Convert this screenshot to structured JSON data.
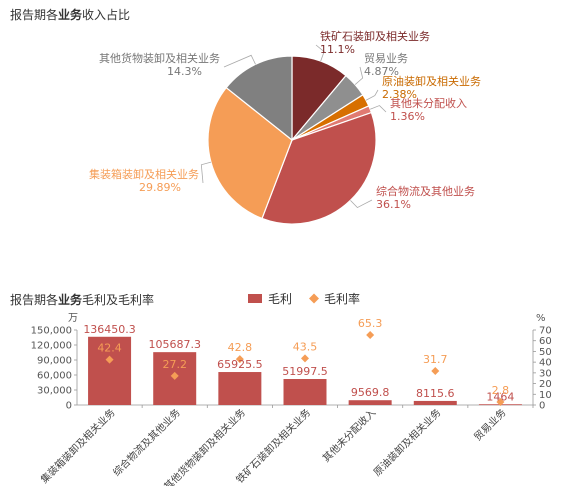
{
  "pie_title": {
    "pre": "报告期各",
    "bold": "业务",
    "post": "收入占比"
  },
  "bar_title": {
    "pre": "报告期各",
    "bold": "业务",
    "post": "毛利及毛利率"
  },
  "colors": {
    "bar": "#c0504d",
    "diamond": "#f59d56"
  },
  "chart_data": [
    {
      "type": "pie",
      "slices": [
        {
          "label": "铁矿石装卸及相关业务",
          "value": 11.1,
          "pct": "11.1%",
          "color": "#7b2a2a",
          "label_color": "#7b2a2a"
        },
        {
          "label": "贸易业务",
          "value": 4.87,
          "pct": "4.87%",
          "color": "#8f8f8f",
          "label_color": "#777777"
        },
        {
          "label": "原油装卸及相关业务",
          "value": 2.38,
          "pct": "2.38%",
          "color": "#d76f00",
          "label_color": "#c96a00"
        },
        {
          "label": "其他未分配收入",
          "value": 1.36,
          "pct": "1.36%",
          "color": "#e07a72",
          "label_color": "#c0504d"
        },
        {
          "label": "综合物流及其他业务",
          "value": 36.1,
          "pct": "36.1%",
          "color": "#c0504d",
          "label_color": "#c0504d"
        },
        {
          "label": "集装箱装卸及相关业务",
          "value": 29.89,
          "pct": "29.89%",
          "color": "#f59d56",
          "label_color": "#f59d56"
        },
        {
          "label": "其他货物装卸及相关业务",
          "value": 14.3,
          "pct": "14.3%",
          "color": "#808080",
          "label_color": "#777777"
        }
      ]
    },
    {
      "type": "bar",
      "legend": [
        "毛利",
        "毛利率"
      ],
      "y_unit_left": "万",
      "y_unit_right": "%",
      "ylim_left": [
        0,
        150000
      ],
      "yticks_left": [
        "0",
        "30,000",
        "60,000",
        "90,000",
        "120,000",
        "150,000"
      ],
      "ylim_right": [
        0,
        70
      ],
      "yticks_right": [
        "0",
        "10",
        "20",
        "30",
        "40",
        "50",
        "60",
        "70"
      ],
      "categories": [
        "集装箱装卸及相关业务",
        "综合物流及其他业务",
        "其他货物装卸及相关业务",
        "铁矿石装卸及相关业务",
        "其他未分配收入",
        "原油装卸及相关业务",
        "贸易业务"
      ],
      "series": [
        {
          "name": "毛利",
          "values": [
            136450.3,
            105687.3,
            65925.5,
            51997.5,
            9569.8,
            8115.6,
            1464
          ],
          "labels": [
            "136450.3",
            "105687.3",
            "65925.5",
            "51997.5",
            "9569.8",
            "8115.6",
            "1464"
          ]
        },
        {
          "name": "毛利率",
          "values": [
            42.4,
            27.2,
            42.8,
            43.5,
            65.3,
            31.7,
            2.8
          ],
          "labels": [
            "42.4",
            "27.2",
            "42.8",
            "43.5",
            "65.3",
            "31.7",
            "2.8"
          ]
        }
      ]
    }
  ]
}
